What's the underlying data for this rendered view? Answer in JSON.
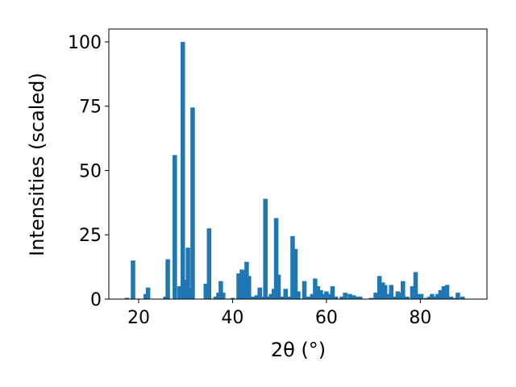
{
  "chart_data": {
    "type": "bar",
    "xlabel": "2θ (°)",
    "ylabel": "Intensities (scaled)",
    "x": [
      17.5,
      18.8,
      21.5,
      22,
      25.7,
      26.2,
      27.7,
      28.7,
      29.4,
      30,
      30.5,
      31,
      31.5,
      34.3,
      35,
      36.4,
      37,
      37.5,
      38,
      40,
      41.3,
      42,
      42.5,
      43,
      43.5,
      44.3,
      45.2,
      45.8,
      46.5,
      47,
      47.6,
      48.2,
      48.8,
      49.3,
      49.8,
      50.5,
      51.3,
      52,
      52.8,
      53.4,
      54,
      55.3,
      56.2,
      57,
      57.6,
      58.2,
      58.8,
      59.5,
      60,
      60.7,
      61.3,
      62,
      63.3,
      64,
      65,
      65.8,
      66.5,
      67.2,
      69.5,
      70.5,
      71.3,
      72,
      72.5,
      73.3,
      73.8,
      74.5,
      75.2,
      75.8,
      76.3,
      77.2,
      78.3,
      79,
      79.5,
      80.2,
      81.3,
      82,
      82.5,
      83,
      83.7,
      84.3,
      85,
      85.7,
      86.5,
      87,
      88,
      89
    ],
    "values": [
      0.5,
      15,
      2,
      4.5,
      1,
      15.5,
      56,
      5,
      100,
      7.5,
      20,
      4,
      74.5,
      6,
      27.5,
      1,
      2.5,
      7,
      2.5,
      0.5,
      10,
      11.5,
      11,
      14.5,
      9,
      1,
      1.5,
      4.5,
      1,
      39,
      1,
      2,
      4,
      31.5,
      9.5,
      1,
      4,
      1,
      24.5,
      19.5,
      3,
      7,
      1,
      2,
      8,
      5,
      3.5,
      2,
      3,
      2,
      5,
      1,
      1,
      2.5,
      2,
      1.5,
      1,
      1,
      0.5,
      2.5,
      9,
      6.5,
      5.5,
      2,
      5.5,
      1,
      3,
      2.5,
      7,
      1,
      5,
      10.5,
      2,
      2,
      0.5,
      1,
      2,
      1,
      2,
      3.5,
      5,
      5.5,
      1,
      0.5,
      2.5,
      1
    ],
    "color": "#1f77b4",
    "xlim": [
      13.65,
      94.2
    ],
    "xticks": [
      20,
      40,
      60,
      80
    ],
    "ylim": [
      0,
      105
    ],
    "yticks": [
      0,
      25,
      50,
      75,
      100
    ]
  }
}
